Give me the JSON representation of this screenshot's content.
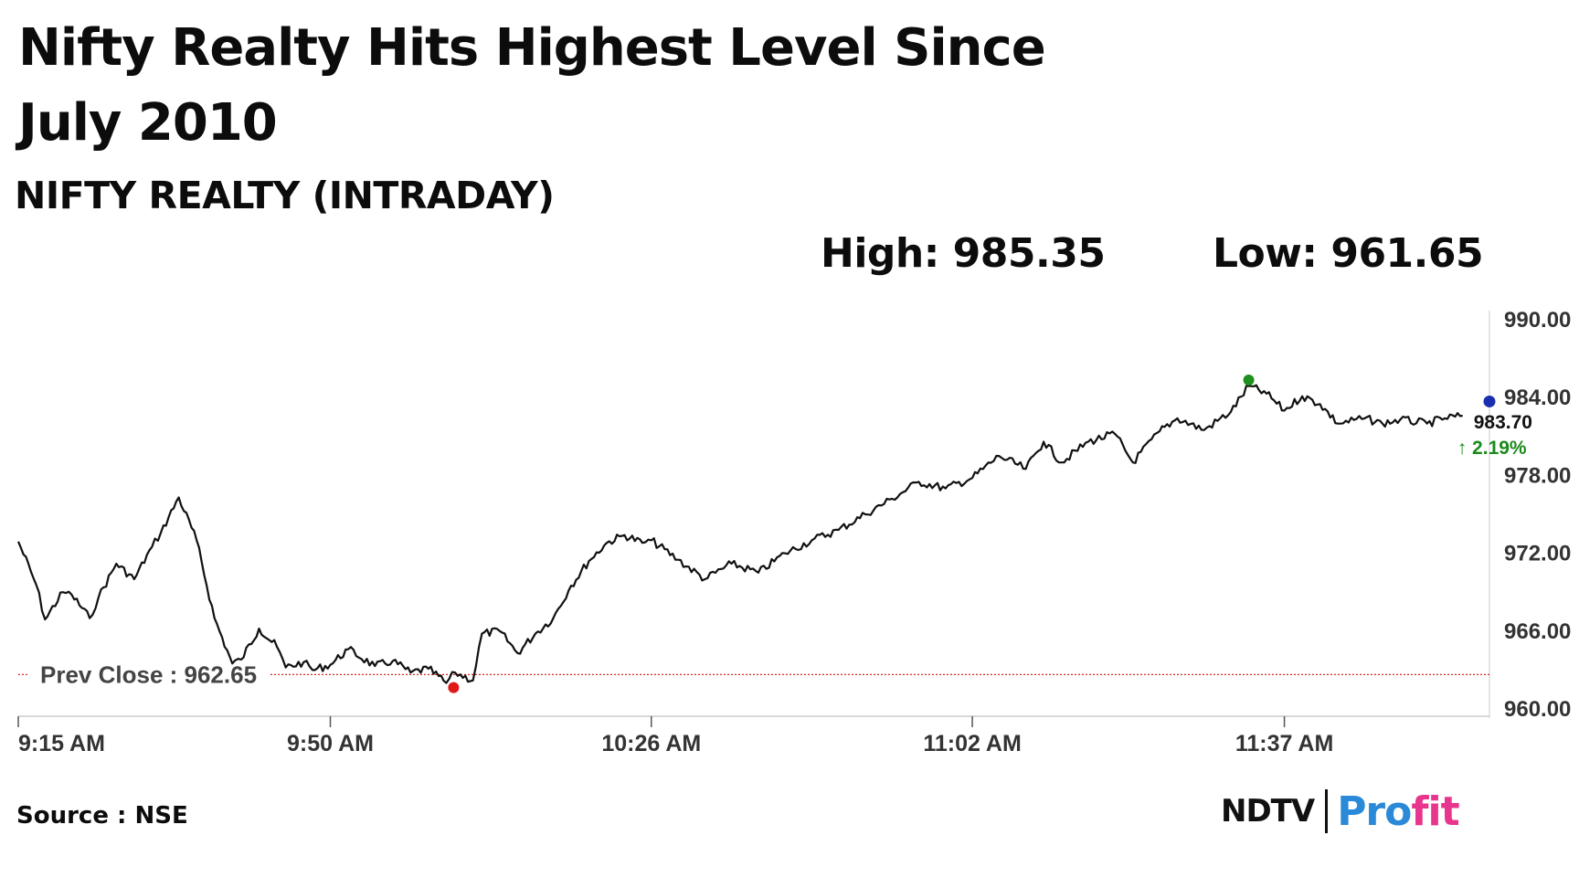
{
  "header": {
    "title": "Nifty Realty Hits Highest Level Since July 2010",
    "subtitle": "NIFTY REALTY (INTRADAY)",
    "high_text": "High: 985.35",
    "low_text": "Low: 961.65"
  },
  "footer": {
    "source": "Source : NSE",
    "logo_left": "NDTV",
    "logo_right_a": "Pro",
    "logo_right_b": "fit"
  },
  "colors": {
    "line": "#111111",
    "high_marker": "#1f8f1f",
    "low_marker": "#e01818",
    "last_marker": "#1a2fb0",
    "prev_close_line": "#d42a2a",
    "axis": "#cccccc",
    "logo_blue": "#2a8ad8",
    "logo_pink": "#e8358e"
  },
  "chart_data": {
    "type": "line",
    "title": "NIFTY REALTY (INTRADAY)",
    "xlabel": "",
    "ylabel": "",
    "ylim": [
      960,
      990
    ],
    "yticks": [
      "990.00",
      "984.00",
      "978.00",
      "972.00",
      "966.00",
      "960.00"
    ],
    "xlim": [
      "9:15 AM",
      "12:00 PM"
    ],
    "xticks": [
      "9:15 AM",
      "9:50 AM",
      "10:26 AM",
      "11:02 AM",
      "11:37 AM"
    ],
    "grid": false,
    "prev_close": 962.65,
    "prev_close_label": "Prev Close : 962.65",
    "high": 985.35,
    "low": 961.65,
    "last_value": 983.7,
    "last_label": "983.70",
    "change_label": "↑ 2.19%",
    "series": [
      {
        "x": [
          "9:15 AM",
          "9:17 AM",
          "9:18 AM",
          "9:20 AM",
          "9:21 AM",
          "9:23 AM",
          "9:24 AM",
          "9:26 AM",
          "9:28 AM",
          "9:30 AM",
          "9:31 AM",
          "9:33 AM",
          "9:35 AM",
          "9:37 AM",
          "9:39 AM",
          "9:40 AM",
          "9:42 AM",
          "9:44 AM",
          "9:45 AM",
          "9:47 AM",
          "9:48 AM",
          "9:50 AM",
          "9:52 AM",
          "9:55 AM",
          "9:57 AM",
          "9:59 AM",
          "10:01 AM",
          "10:03 AM",
          "10:04 AM",
          "10:06 AM",
          "10:07 AM",
          "10:09 AM",
          "10:11 AM",
          "10:13 AM",
          "10:15 AM",
          "10:17 AM",
          "10:19 AM",
          "10:21 AM",
          "10:23 AM",
          "10:25 AM",
          "10:26 AM",
          "10:29 AM",
          "10:32 AM",
          "10:35 AM",
          "10:38 AM",
          "10:41 AM",
          "10:44 AM",
          "10:47 AM",
          "10:50 AM",
          "10:53 AM",
          "10:56 AM",
          "10:59 AM",
          "11:02 AM",
          "11:05 AM",
          "11:08 AM",
          "11:10 AM",
          "11:12 AM",
          "11:15 AM",
          "11:18 AM",
          "11:20 AM",
          "11:23 AM",
          "11:25 AM",
          "11:28 AM",
          "11:31 AM",
          "11:33 AM",
          "11:35 AM",
          "11:37 AM",
          "11:39 AM",
          "11:41 AM",
          "11:43 AM",
          "11:46 AM",
          "11:48 AM",
          "11:50 AM",
          "11:53 AM",
          "11:55 AM",
          "11:57 AM"
        ],
        "values": [
          972.9,
          969.6,
          966.9,
          969.0,
          968.8,
          967.0,
          968.6,
          971.2,
          970.0,
          972.5,
          973.6,
          976.3,
          973.0,
          967.0,
          963.5,
          963.8,
          966.2,
          964.8,
          963.2,
          963.6,
          963.0,
          963.4,
          964.6,
          963.3,
          963.7,
          962.8,
          963.1,
          962.0,
          962.8,
          962.2,
          965.8,
          966.0,
          964.3,
          965.8,
          967.0,
          969.5,
          971.4,
          972.8,
          973.4,
          972.8,
          973.0,
          971.5,
          970.0,
          971.2,
          970.5,
          972.0,
          973.0,
          973.8,
          975.0,
          976.2,
          977.5,
          977.0,
          977.8,
          979.5,
          978.5,
          980.6,
          979.0,
          980.6,
          981.2,
          979.0,
          981.4,
          982.4,
          981.5,
          982.9,
          984.9,
          984.3,
          983.0,
          984.1,
          983.5,
          982.0,
          982.4,
          982.0,
          982.3,
          982.0,
          982.4,
          982.6
        ]
      }
    ]
  }
}
